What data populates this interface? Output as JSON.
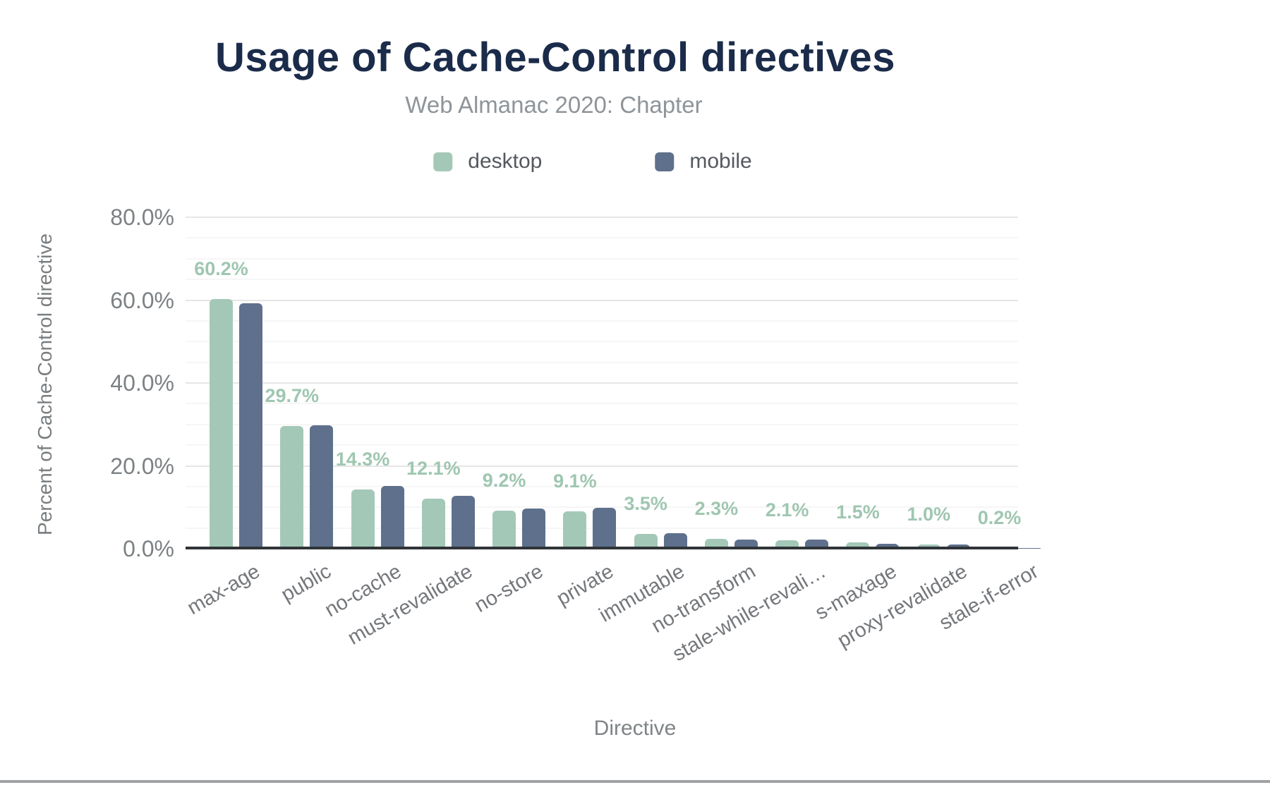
{
  "chart_data": {
    "type": "bar",
    "title": "Usage of Cache-Control directives",
    "subtitle": "Web Almanac 2020: Chapter",
    "xlabel": "Directive",
    "ylabel": "Percent of Cache-Control directive",
    "ylim": [
      0,
      80
    ],
    "ytick_labels": [
      "0.0%",
      "20.0%",
      "40.0%",
      "60.0%",
      "80.0%"
    ],
    "grid": {
      "orientation": "horizontal",
      "major_every_pct": 20,
      "minor_every_pct": 5
    },
    "legend_position": "top",
    "categories": [
      "max-age",
      "public",
      "no-cache",
      "must-revalidate",
      "no-store",
      "private",
      "immutable",
      "no-transform",
      "stale-while-revali…",
      "s-maxage",
      "proxy-revalidate",
      "stale-if-error"
    ],
    "series": [
      {
        "name": "desktop",
        "color": "#a4c8b8",
        "values": [
          60.2,
          29.7,
          14.3,
          12.1,
          9.2,
          9.1,
          3.5,
          2.3,
          2.1,
          1.5,
          1.0,
          0.2
        ]
      },
      {
        "name": "mobile",
        "color": "#5e708c",
        "values": [
          59.3,
          29.8,
          15.2,
          12.7,
          9.7,
          9.8,
          3.7,
          2.2,
          2.2,
          1.2,
          1.1,
          0.2
        ]
      }
    ],
    "data_labels": {
      "series": "desktop",
      "color": "#9fc6b1",
      "values": [
        "60.2%",
        "29.7%",
        "14.3%",
        "12.1%",
        "9.2%",
        "9.1%",
        "3.5%",
        "2.3%",
        "2.1%",
        "1.5%",
        "1.0%",
        "0.2%"
      ]
    }
  }
}
